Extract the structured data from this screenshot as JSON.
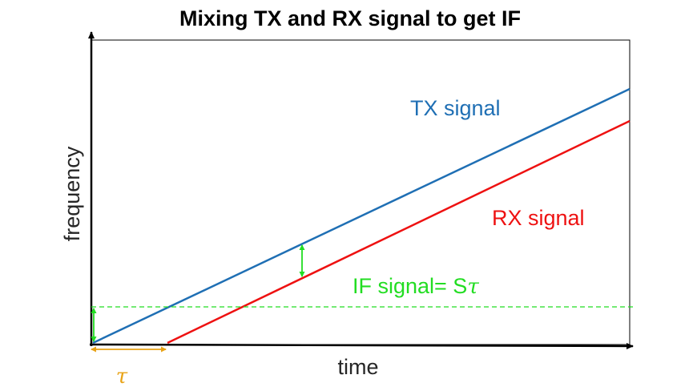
{
  "title": "Mixing TX and RX signal to get IF",
  "xlabel": "time",
  "ylabel": "frequency",
  "labels": {
    "tx": "TX signal",
    "rx": "RX signal",
    "if_prefix": "IF signal= S",
    "if_symbol": "τ",
    "tau": "τ"
  },
  "colors": {
    "tx": "#1f6fb4",
    "rx": "#ee1111",
    "if": "#22dd22",
    "tau": "#e8a317",
    "axis": "#000000"
  }
}
